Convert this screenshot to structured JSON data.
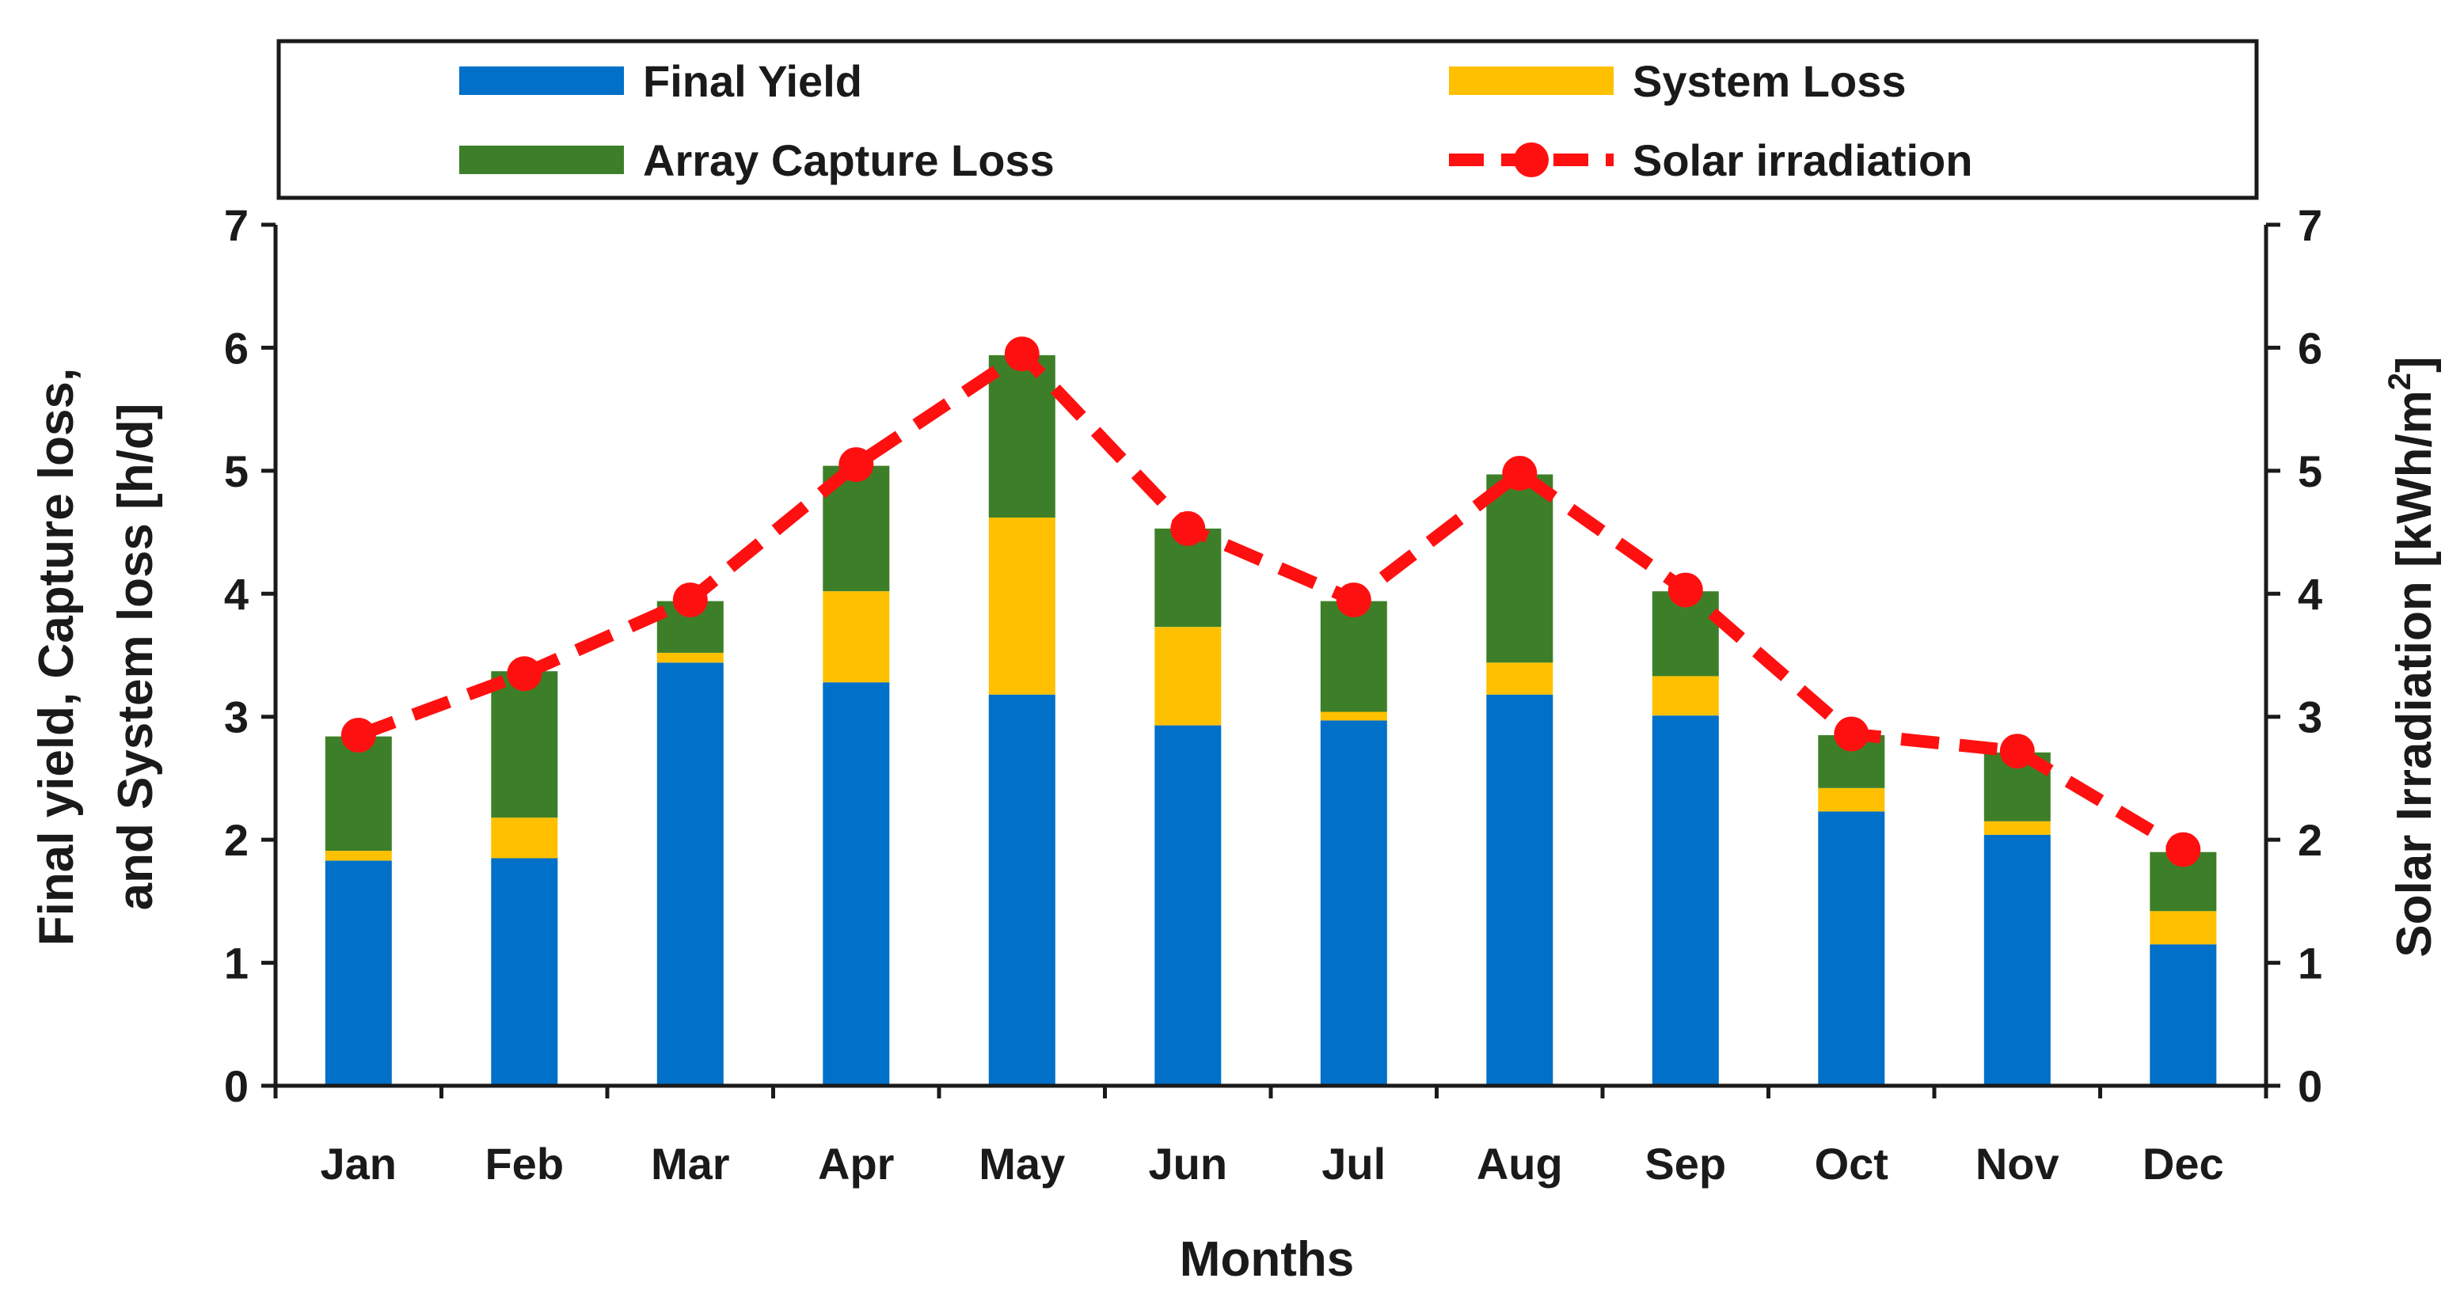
{
  "chart_data": {
    "type": "bar",
    "stacked": true,
    "categories": [
      "Jan",
      "Feb",
      "Mar",
      "Apr",
      "May",
      "Jun",
      "Jul",
      "Aug",
      "Sep",
      "Oct",
      "Nov",
      "Dec"
    ],
    "series": [
      {
        "name": "Final Yield",
        "kind": "bar",
        "axis": "left",
        "color": "#0070C8",
        "values": [
          1.83,
          1.85,
          3.44,
          3.28,
          3.18,
          2.93,
          2.97,
          3.18,
          3.01,
          2.23,
          2.04,
          1.15
        ]
      },
      {
        "name": "System Loss",
        "kind": "bar",
        "axis": "left",
        "color": "#FFC000",
        "values": [
          0.08,
          0.33,
          0.08,
          0.74,
          1.44,
          0.8,
          0.07,
          0.26,
          0.32,
          0.19,
          0.11,
          0.27
        ]
      },
      {
        "name": "Array Capture Loss",
        "kind": "bar",
        "axis": "left",
        "color": "#3D7F28",
        "values": [
          0.93,
          1.19,
          0.42,
          1.02,
          1.32,
          0.8,
          0.9,
          1.53,
          0.69,
          0.43,
          0.56,
          0.48
        ]
      },
      {
        "name": "Solar irradiation",
        "kind": "line",
        "axis": "right",
        "color": "#FF1010",
        "values": [
          2.85,
          3.35,
          3.95,
          5.05,
          5.95,
          4.53,
          3.95,
          4.98,
          4.03,
          2.86,
          2.72,
          1.92
        ]
      }
    ],
    "xlabel": "Months",
    "ylabel_lines": [
      "Final yield, Capture loss,",
      "and System loss [h/d]"
    ],
    "ylabel_right_main": "Solar Irradiation [kWh/m",
    "ylabel_right_sup": "2",
    "ylabel_right_close": "]",
    "ylim": [
      0,
      7
    ],
    "y2lim": [
      0,
      7
    ],
    "yticks": [
      "0",
      "1",
      "2",
      "3",
      "4",
      "5",
      "6",
      "7"
    ],
    "legend_position": "top",
    "grid": false
  }
}
